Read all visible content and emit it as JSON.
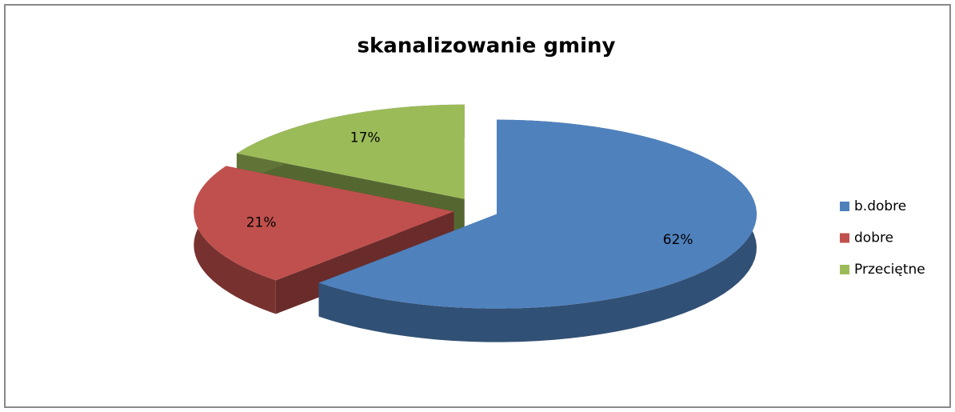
{
  "chart_data": {
    "type": "pie3d",
    "title": "skanalizowanie gminy",
    "categories": [
      "b.dobre",
      "dobre",
      "Przeciętne"
    ],
    "values": [
      62,
      21,
      17
    ],
    "value_labels": [
      "62%",
      "21%",
      "17%"
    ],
    "colors": [
      "#4f81bd",
      "#c0504d",
      "#9bbb59"
    ],
    "legend": "right"
  }
}
